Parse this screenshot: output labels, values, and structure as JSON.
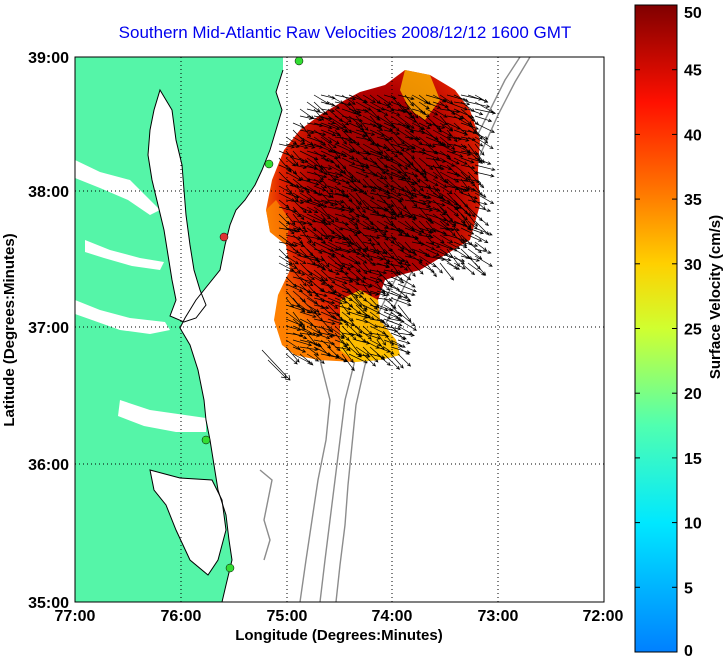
{
  "map": {
    "title": "Southern Mid-Atlantic Raw Velocities 2008/12/12 1600 GMT",
    "xlabel": "Longitude (Degrees:Minutes)",
    "ylabel": "Latitude (Degrees:Minutes)",
    "lon_ticks": [
      "77:00",
      "76:00",
      "75:00",
      "74:00",
      "73:00",
      "72:00"
    ],
    "lat_ticks": [
      "39:00",
      "38:00",
      "37:00",
      "36:00",
      "35:00"
    ],
    "lon_range": [
      -77,
      -72
    ],
    "lat_range": [
      35,
      39
    ],
    "grid": "dotted",
    "colors": {
      "land": "#55f5a8",
      "coastline": "#000000",
      "bathymetry": "#8c8c8c",
      "station": "#33dd33",
      "station_active": "#dd3333"
    }
  },
  "colorbar": {
    "label": "Surface Velocity (cm/s)",
    "ticks": [
      "0",
      "5",
      "10",
      "15",
      "20",
      "25",
      "30",
      "35",
      "40",
      "45",
      "50"
    ],
    "range": [
      0,
      50
    ],
    "colormap": "jet"
  }
}
